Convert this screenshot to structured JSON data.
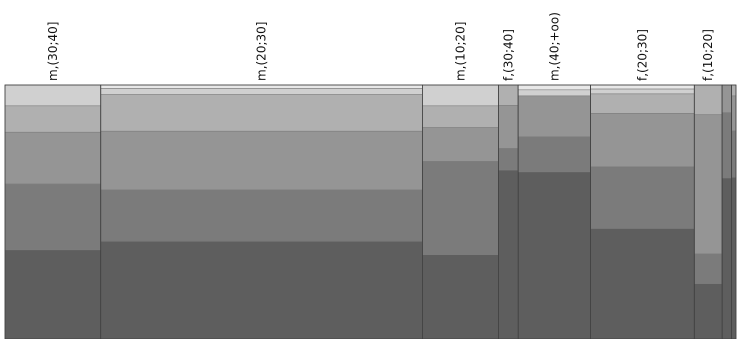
{
  "chart_data": {
    "type": "bar",
    "subtype": "mosaic",
    "orientation": "vertical-stacked-variable-width",
    "title": "",
    "xlabel": "",
    "ylabel": "",
    "grid": false,
    "legend": "none",
    "categories": [
      "m,(30;40]",
      "m,(20;30]",
      "m,(10;20]",
      "f,(30;40]",
      "m,(40;+oo)",
      "f,(20;30]",
      "f,(10;20]",
      "",
      ""
    ],
    "widths": [
      13.1,
      44.0,
      10.4,
      2.7,
      9.9,
      14.2,
      3.8,
      1.3,
      0.6
    ],
    "segment_order": "top-to-bottom",
    "segment_colors": [
      "#e8e8e8",
      "#d0d0d0",
      "#b0b0b0",
      "#959595",
      "#7b7b7b",
      "#5e5e5e"
    ],
    "segments": [
      [
        0,
        8.2,
        10.4,
        20.4,
        25.9,
        35.1
      ],
      [
        1.4,
        2.4,
        14.4,
        23.1,
        20.2,
        38.5
      ],
      [
        0,
        8.2,
        8.6,
        13.3,
        36.7,
        33.2
      ],
      [
        0,
        0,
        8.1,
        16.9,
        8.5,
        66.5
      ],
      [
        1.9,
        2.4,
        0,
        16.1,
        13.8,
        65.8
      ],
      [
        1.6,
        1.9,
        7.7,
        21.0,
        24.3,
        43.5
      ],
      [
        0,
        0,
        11.7,
        54.8,
        11.7,
        21.8
      ],
      [
        0,
        0,
        0,
        10.9,
        25.7,
        63.4
      ],
      [
        0,
        0,
        4.3,
        13.8,
        18.2,
        63.7
      ]
    ]
  }
}
